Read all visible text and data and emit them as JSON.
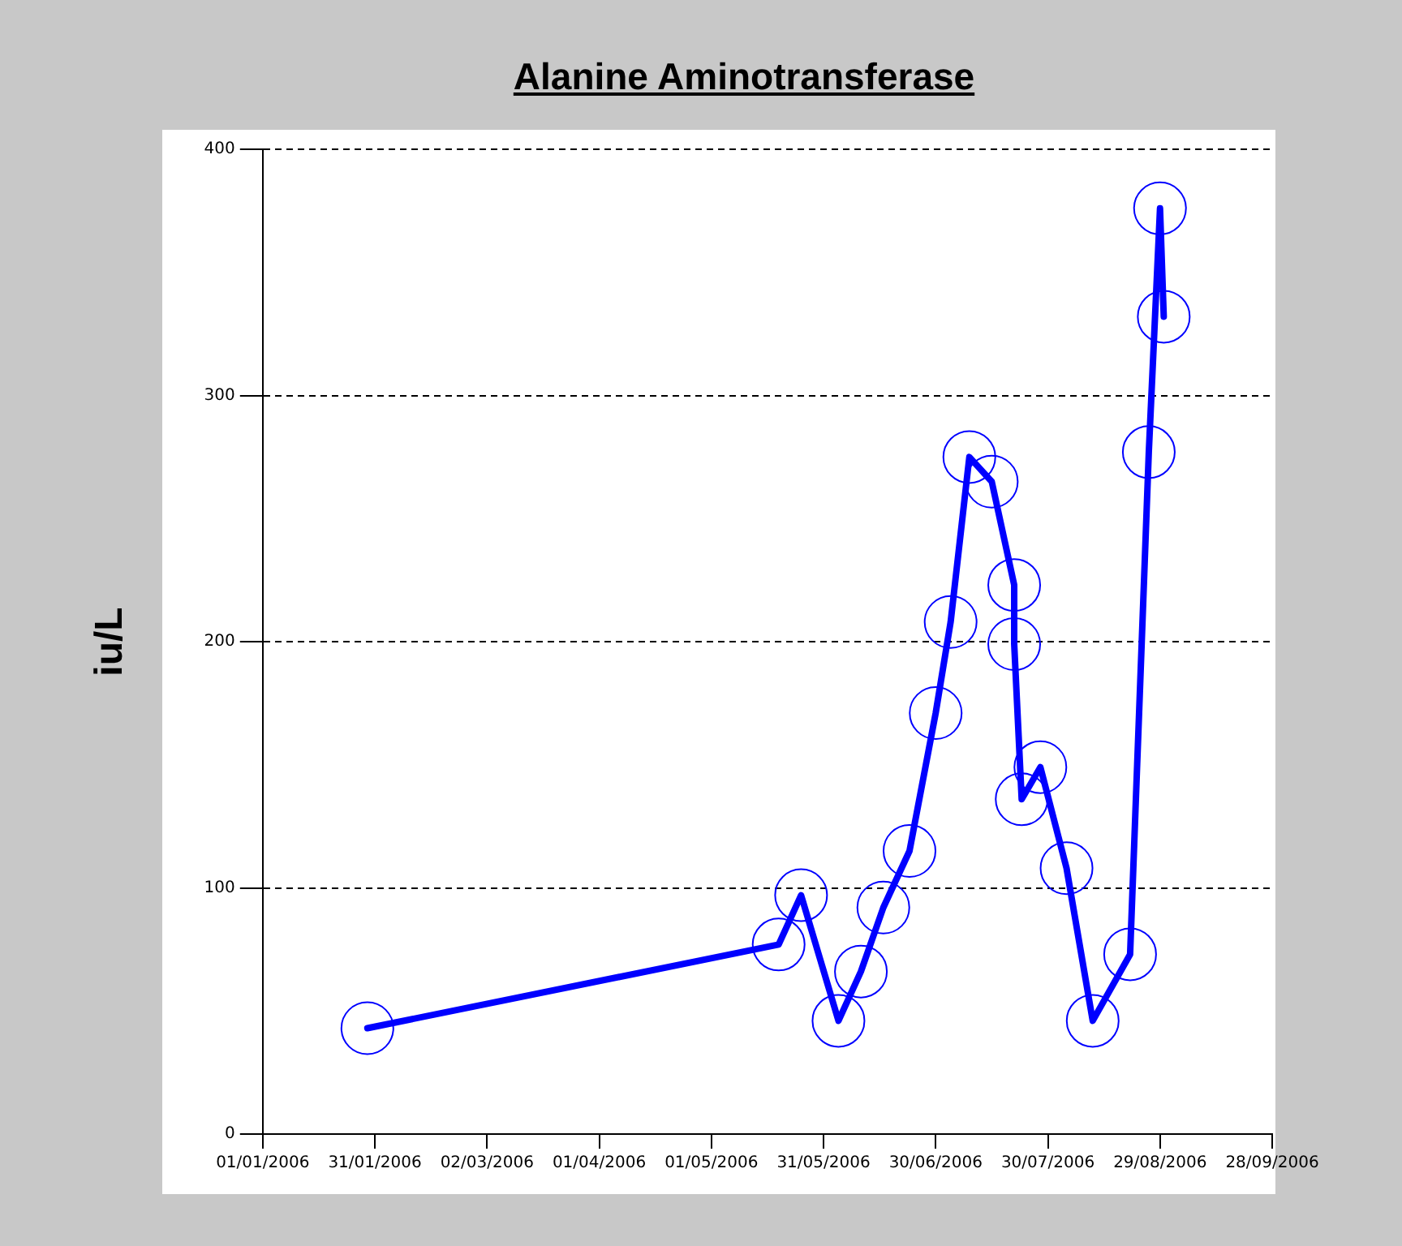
{
  "chart_data": {
    "type": "line",
    "title": "Alanine Aminotransferase",
    "ylabel": "iu/L",
    "x": [
      "2006-01-29",
      "2006-05-19",
      "2006-05-25",
      "2006-06-04",
      "2006-06-10",
      "2006-06-16",
      "2006-06-23",
      "2006-06-30",
      "2006-07-04",
      "2006-07-09",
      "2006-07-15",
      "2006-07-21",
      "2006-07-21",
      "2006-07-23",
      "2006-07-28",
      "2006-08-04",
      "2006-08-11",
      "2006-08-21",
      "2006-08-26",
      "2006-08-29",
      "2006-08-30"
    ],
    "series": [
      {
        "color": "#0000ff",
        "values": [
          43,
          77,
          97,
          46,
          66,
          92,
          115,
          171,
          208,
          275,
          265,
          223,
          199,
          136,
          149,
          108,
          46,
          73,
          277,
          376,
          332
        ]
      }
    ],
    "xlim": [
      "2006-01-01",
      "2006-09-28"
    ],
    "xticks": [
      {
        "value": "2006-01-01",
        "label": "01/01/2006"
      },
      {
        "value": "2006-01-31",
        "label": "31/01/2006"
      },
      {
        "value": "2006-03-02",
        "label": "02/03/2006"
      },
      {
        "value": "2006-04-01",
        "label": "01/04/2006"
      },
      {
        "value": "2006-05-01",
        "label": "01/05/2006"
      },
      {
        "value": "2006-05-31",
        "label": "31/05/2006"
      },
      {
        "value": "2006-06-30",
        "label": "30/06/2006"
      },
      {
        "value": "2006-07-30",
        "label": "30/07/2006"
      },
      {
        "value": "2006-08-29",
        "label": "29/08/2006"
      },
      {
        "value": "2006-09-28",
        "label": "28/09/2006"
      }
    ],
    "ylim": [
      0,
      400
    ],
    "yticks": [
      0,
      100,
      200,
      300,
      400
    ],
    "grid": "y",
    "legend": false,
    "marker": "circle",
    "line_style": "solid"
  }
}
